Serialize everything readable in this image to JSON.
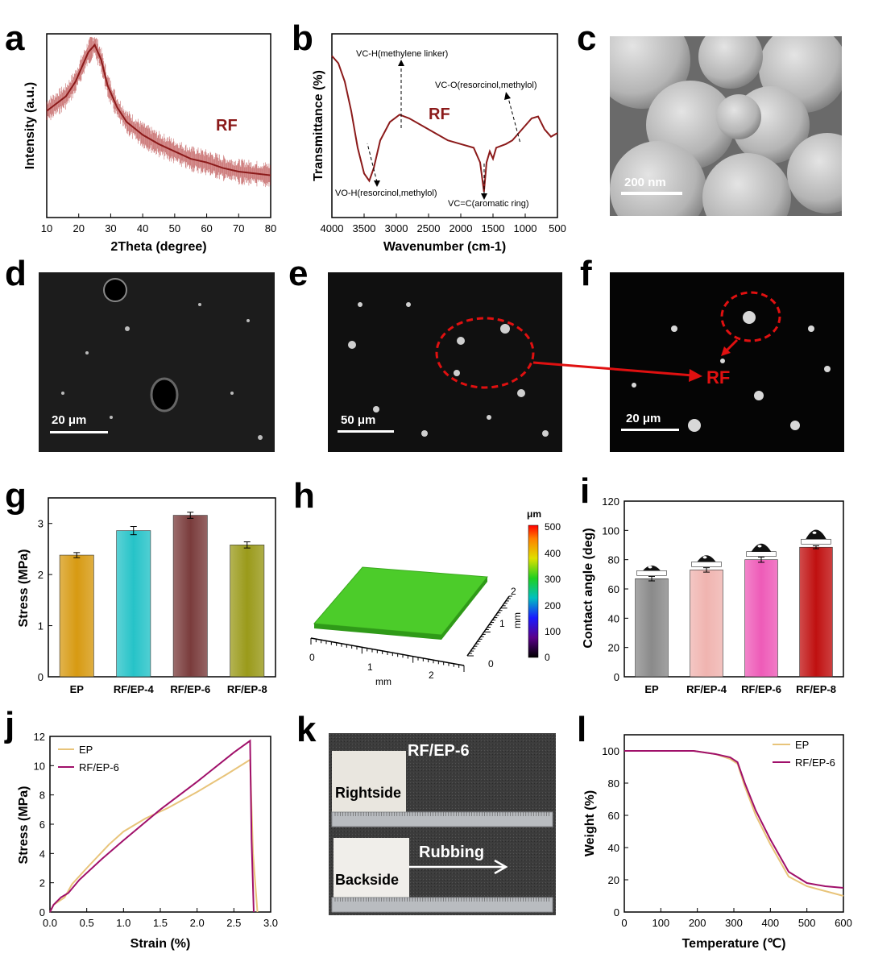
{
  "panel_labels": {
    "a": "a",
    "b": "b",
    "c": "c",
    "d": "d",
    "e": "e",
    "f": "f",
    "g": "g",
    "h": "h",
    "i": "i",
    "j": "j",
    "k": "k",
    "l": "l"
  },
  "colors": {
    "rf_dark_red": "#8b1a1a",
    "annotation_red": "#e01010",
    "ep_line": "#e8c47a",
    "rfep6_line": "#a0106a",
    "bar_ep": "#d79a12",
    "bar_rfep4": "#26c3c8",
    "bar_rfep6": "#7a3c3c",
    "bar_rfep8": "#9a9a1a",
    "bar_i_ep": "#8a8a8a",
    "bar_i_rfep4": "#f0b4b0",
    "bar_i_rfep6": "#ee5bb8",
    "bar_i_rfep8": "#c01010",
    "surface_green": "#4ccc2a"
  },
  "panel_c": {
    "scalebar": "200 nm"
  },
  "panel_d": {
    "scalebar": "20 μm"
  },
  "panel_e": {
    "scalebar": "50 μm"
  },
  "panel_f": {
    "scalebar": "20 μm",
    "label": "RF"
  },
  "panel_h": {
    "colorbar_unit": "μm",
    "colorbar_ticks": [
      "500",
      "400",
      "300",
      "200",
      "100",
      "0"
    ],
    "x_label": "mm",
    "y_label": "mm",
    "x_ticks": [
      "0",
      "1",
      "2"
    ],
    "y_ticks": [
      "0",
      "1",
      "2"
    ]
  },
  "panel_k": {
    "title": "RF/EP-6",
    "rightside": "Rightside",
    "backside": "Backside",
    "rubbing": "Rubbing"
  },
  "chart_data": [
    {
      "panel": "a",
      "type": "line",
      "title": "",
      "xlabel": "2Theta (degree)",
      "ylabel": "Intensity (a.u.)",
      "xlim": [
        10,
        80
      ],
      "x_ticks": [
        "10",
        "20",
        "30",
        "40",
        "50",
        "60",
        "70",
        "80"
      ],
      "legend": "RF",
      "series": [
        {
          "name": "RF",
          "x": [
            10,
            13,
            16,
            19,
            21,
            23,
            25,
            27,
            29,
            32,
            35,
            40,
            45,
            50,
            55,
            60,
            65,
            70,
            75,
            80
          ],
          "y": [
            0.58,
            0.62,
            0.66,
            0.74,
            0.82,
            0.9,
            0.94,
            0.86,
            0.72,
            0.6,
            0.52,
            0.45,
            0.4,
            0.36,
            0.32,
            0.3,
            0.27,
            0.25,
            0.24,
            0.23
          ]
        }
      ]
    },
    {
      "panel": "b",
      "type": "line",
      "title": "",
      "xlabel": "Wavenumber (cm-1)",
      "ylabel": "Transmittance (%)",
      "xlim": [
        4000,
        500
      ],
      "x_ticks": [
        "4000",
        "3500",
        "3000",
        "2500",
        "2000",
        "1500",
        "1000",
        "500"
      ],
      "legend": "RF",
      "annotations": [
        "VC-H(methylene linker)",
        "VC-O(resorcinol,methylol)",
        "VO-H(resorcinol,methylol)",
        "VC=C(aromatic ring)"
      ],
      "series": [
        {
          "name": "RF",
          "x": [
            4000,
            3900,
            3800,
            3700,
            3600,
            3500,
            3420,
            3350,
            3250,
            3100,
            2950,
            2800,
            2600,
            2400,
            2200,
            2000,
            1800,
            1700,
            1640,
            1600,
            1550,
            1500,
            1450,
            1300,
            1200,
            1100,
            1000,
            900,
            800,
            700,
            600,
            500
          ],
          "y": [
            0.88,
            0.84,
            0.74,
            0.58,
            0.38,
            0.24,
            0.2,
            0.27,
            0.42,
            0.52,
            0.56,
            0.54,
            0.5,
            0.46,
            0.42,
            0.4,
            0.38,
            0.3,
            0.14,
            0.3,
            0.36,
            0.32,
            0.38,
            0.4,
            0.42,
            0.46,
            0.5,
            0.54,
            0.55,
            0.48,
            0.44,
            0.46
          ]
        }
      ]
    },
    {
      "panel": "g",
      "type": "bar",
      "title": "",
      "xlabel": "",
      "ylabel": "Stress (MPa)",
      "categories": [
        "EP",
        "RF/EP-4",
        "RF/EP-6",
        "RF/EP-8"
      ],
      "values": [
        2.38,
        2.86,
        3.16,
        2.58
      ],
      "errors": [
        0.05,
        0.08,
        0.06,
        0.06
      ],
      "ylim": [
        0,
        3.5
      ],
      "y_ticks": [
        "0",
        "1",
        "2",
        "3"
      ]
    },
    {
      "panel": "i",
      "type": "bar",
      "title": "",
      "xlabel": "",
      "ylabel": "Contact angle (deg)",
      "categories": [
        "EP",
        "RF/EP-4",
        "RF/EP-6",
        "RF/EP-8"
      ],
      "values": [
        67,
        73,
        80,
        88.5
      ],
      "errors": [
        1.5,
        1.5,
        1.8,
        1.0
      ],
      "ylim": [
        0,
        120
      ],
      "y_ticks": [
        "0",
        "20",
        "40",
        "60",
        "80",
        "100",
        "120"
      ]
    },
    {
      "panel": "j",
      "type": "line",
      "title": "",
      "xlabel": "Strain (%)",
      "ylabel": "Stress (MPa)",
      "xlim": [
        0,
        3.0
      ],
      "ylim": [
        0,
        12
      ],
      "x_ticks": [
        "0.0",
        "0.5",
        "1.0",
        "1.5",
        "2.0",
        "2.5",
        "3.0"
      ],
      "y_ticks": [
        "0",
        "2",
        "4",
        "6",
        "8",
        "10",
        "12"
      ],
      "legend_position": "top-left",
      "series": [
        {
          "name": "EP",
          "x": [
            0,
            0.05,
            0.2,
            0.3,
            0.5,
            0.8,
            1.0,
            1.3,
            1.6,
            2.0,
            2.4,
            2.72,
            2.76,
            2.82
          ],
          "y": [
            0,
            0.5,
            1.0,
            1.9,
            3.0,
            4.6,
            5.5,
            6.4,
            7.1,
            8.2,
            9.4,
            10.4,
            4.0,
            0
          ]
        },
        {
          "name": "RF/EP-6",
          "x": [
            0,
            0.05,
            0.15,
            0.25,
            0.4,
            0.7,
            1.0,
            1.5,
            2.0,
            2.5,
            2.72,
            2.74,
            2.77
          ],
          "y": [
            0,
            0.5,
            1.0,
            1.3,
            2.2,
            3.6,
            4.9,
            7.0,
            8.9,
            10.9,
            11.7,
            5.0,
            0
          ]
        }
      ]
    },
    {
      "panel": "l",
      "type": "line",
      "title": "",
      "xlabel": "Temperature (℃)",
      "ylabel": "Weight (%)",
      "xlim": [
        0,
        600
      ],
      "ylim": [
        0,
        110
      ],
      "x_ticks": [
        "0",
        "100",
        "200",
        "300",
        "400",
        "500",
        "600"
      ],
      "y_ticks": [
        "0",
        "20",
        "40",
        "60",
        "80",
        "100"
      ],
      "legend_position": "top-right",
      "series": [
        {
          "name": "EP",
          "x": [
            0,
            100,
            190,
            250,
            290,
            310,
            330,
            360,
            400,
            450,
            500,
            550,
            600
          ],
          "y": [
            100,
            100,
            100,
            98,
            95,
            92,
            78,
            60,
            42,
            22,
            16,
            13,
            10
          ]
        },
        {
          "name": "RF/EP-6",
          "x": [
            0,
            100,
            190,
            250,
            290,
            310,
            330,
            360,
            400,
            450,
            500,
            550,
            600
          ],
          "y": [
            100,
            100,
            100,
            98,
            96,
            93,
            80,
            63,
            45,
            25,
            18,
            16,
            15
          ]
        }
      ]
    }
  ]
}
